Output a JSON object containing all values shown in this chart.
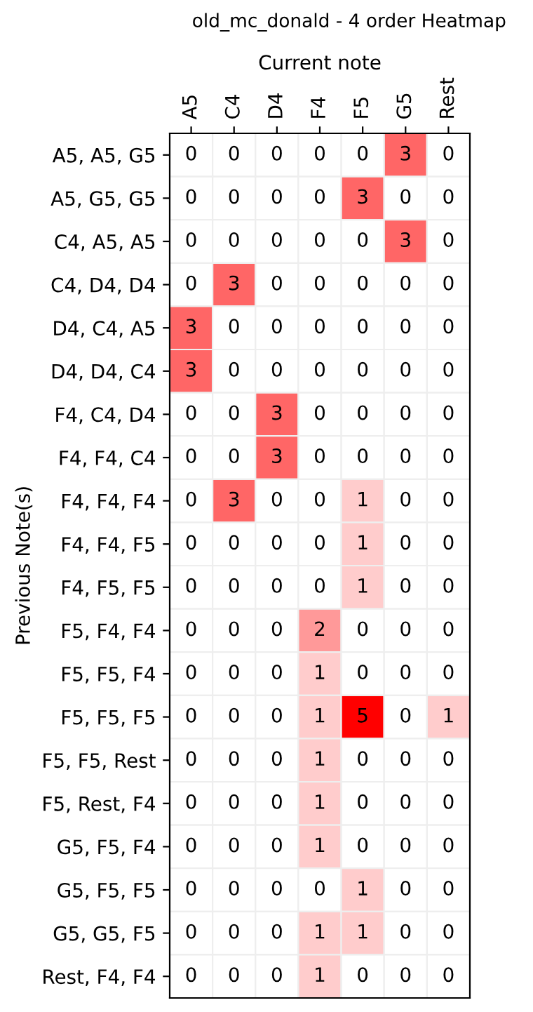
{
  "chart_data": {
    "type": "heatmap",
    "title": "old_mc_donald - 4 order Heatmap",
    "xlabel": "Current note",
    "ylabel": "Previous Note(s)",
    "categories": [
      "A5",
      "C4",
      "D4",
      "F4",
      "F5",
      "G5",
      "Rest"
    ],
    "y_categories": [
      "A5, A5, G5",
      "A5, G5, G5",
      "C4, A5, A5",
      "C4, D4, D4",
      "D4, C4, A5",
      "D4, D4, C4",
      "F4, C4, D4",
      "F4, F4, C4",
      "F4, F4, F4",
      "F4, F4, F5",
      "F4, F5, F5",
      "F5, F4, F4",
      "F5, F5, F4",
      "F5, F5, F5",
      "F5, F5, Rest",
      "F5, Rest, F4",
      "G5, F5, F4",
      "G5, F5, F5",
      "G5, G5, F5",
      "Rest, F4, F4"
    ],
    "cells": [
      [
        0,
        0,
        0,
        0,
        0,
        3,
        0
      ],
      [
        0,
        0,
        0,
        0,
        3,
        0,
        0
      ],
      [
        0,
        0,
        0,
        0,
        0,
        3,
        0
      ],
      [
        0,
        3,
        0,
        0,
        0,
        0,
        0
      ],
      [
        3,
        0,
        0,
        0,
        0,
        0,
        0
      ],
      [
        3,
        0,
        0,
        0,
        0,
        0,
        0
      ],
      [
        0,
        0,
        3,
        0,
        0,
        0,
        0
      ],
      [
        0,
        0,
        3,
        0,
        0,
        0,
        0
      ],
      [
        0,
        3,
        0,
        0,
        1,
        0,
        0
      ],
      [
        0,
        0,
        0,
        0,
        1,
        0,
        0
      ],
      [
        0,
        0,
        0,
        0,
        1,
        0,
        0
      ],
      [
        0,
        0,
        0,
        2,
        0,
        0,
        0
      ],
      [
        0,
        0,
        0,
        1,
        0,
        0,
        0
      ],
      [
        0,
        0,
        0,
        1,
        5,
        0,
        1
      ],
      [
        0,
        0,
        0,
        1,
        0,
        0,
        0
      ],
      [
        0,
        0,
        0,
        1,
        0,
        0,
        0
      ],
      [
        0,
        0,
        0,
        1,
        0,
        0,
        0
      ],
      [
        0,
        0,
        0,
        0,
        1,
        0,
        0
      ],
      [
        0,
        0,
        0,
        1,
        1,
        0,
        0
      ],
      [
        0,
        0,
        0,
        1,
        0,
        0,
        0
      ]
    ],
    "color": "#ff0000",
    "data_labels": true
  }
}
